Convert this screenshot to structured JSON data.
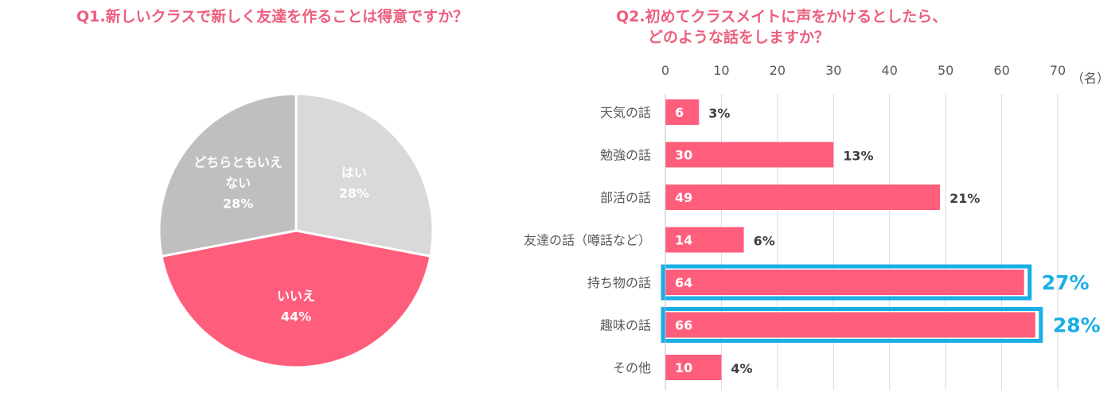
{
  "chart_data": [
    {
      "type": "pie",
      "title": "Q1.新しいクラスで新しく友達を作ることは得意ですか？",
      "slices": [
        {
          "label": "はい",
          "value": 28,
          "value_label": "28%",
          "color": "#d9d9d9"
        },
        {
          "label": "いいえ",
          "value": 44,
          "value_label": "44%",
          "color": "#ff5d7c"
        },
        {
          "label": "どちらともいえない",
          "label_lines": [
            "どちらともいえ",
            "ない"
          ],
          "value": 28,
          "value_label": "28%",
          "color": "#bfbfbf"
        }
      ]
    },
    {
      "type": "bar",
      "orientation": "horizontal",
      "title_lines": [
        "Q2.初めてクラスメイトに声をかけるとしたら、",
        "どのような話をしますか？"
      ],
      "categories": [
        "天気の話",
        "勉強の話",
        "部活の話",
        "友達の話（噂話など）",
        "持ち物の話",
        "趣味の話",
        "その他"
      ],
      "values": [
        6,
        30,
        49,
        14,
        64,
        66,
        10
      ],
      "percent_labels": [
        "3%",
        "13%",
        "21%",
        "6%",
        "27%",
        "28%",
        "4%"
      ],
      "highlighted": [
        false,
        false,
        false,
        false,
        true,
        true,
        false
      ],
      "xlim": [
        0,
        70
      ],
      "xticks": [
        "0",
        "10",
        "20",
        "30",
        "40",
        "50",
        "60",
        "70"
      ],
      "x_unit": "（名）",
      "grid": true,
      "bar_color": "#ff5d7c",
      "highlight_color": "#19aee6"
    }
  ]
}
